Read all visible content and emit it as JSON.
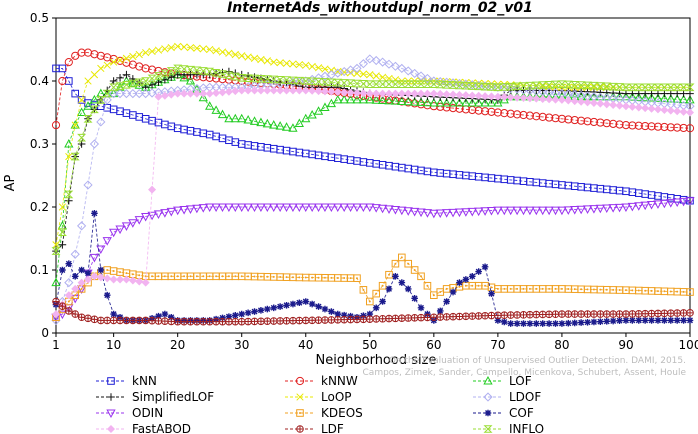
{
  "chart_data": {
    "type": "line",
    "title": "InternetAds_withoutdupl_norm_02_v01",
    "xlabel": "Neighborhood size",
    "ylabel": "AP",
    "xlim": [
      1,
      100
    ],
    "ylim": [
      0,
      0.5
    ],
    "xticks": [
      1,
      10,
      20,
      30,
      40,
      50,
      60,
      70,
      80,
      90,
      100
    ],
    "yticks": [
      0,
      0.1,
      0.2,
      0.3,
      0.4,
      0.5
    ],
    "grid": false,
    "legend_position": "bottom",
    "credit_lines": [
      "Campos, Zimek, Sander, Campello, Micenkova, Schubert, Assent, Houle",
      "On the Evaluation of Unsupervised Outlier Detection. DAMI, 2015."
    ],
    "series": [
      {
        "name": "kNN",
        "color": "#1f1fd6",
        "marker": "square",
        "x": [
          1,
          2,
          3,
          4,
          5,
          6,
          8,
          10,
          15,
          20,
          25,
          30,
          40,
          50,
          60,
          70,
          80,
          90,
          100
        ],
        "y": [
          0.42,
          0.42,
          0.4,
          0.38,
          0.37,
          0.365,
          0.36,
          0.355,
          0.34,
          0.325,
          0.315,
          0.3,
          0.285,
          0.27,
          0.255,
          0.245,
          0.235,
          0.225,
          0.21
        ]
      },
      {
        "name": "kNNW",
        "color": "#e02020",
        "marker": "circle",
        "x": [
          1,
          2,
          3,
          4,
          5,
          6,
          8,
          10,
          15,
          20,
          25,
          30,
          40,
          50,
          60,
          70,
          80,
          90,
          100
        ],
        "y": [
          0.33,
          0.4,
          0.43,
          0.44,
          0.445,
          0.445,
          0.44,
          0.435,
          0.42,
          0.41,
          0.405,
          0.4,
          0.39,
          0.375,
          0.36,
          0.35,
          0.34,
          0.33,
          0.325
        ]
      },
      {
        "name": "LOF",
        "color": "#22cc22",
        "marker": "triangle-up",
        "x": [
          1,
          2,
          3,
          4,
          5,
          6,
          8,
          10,
          12,
          15,
          20,
          22,
          25,
          28,
          30,
          35,
          38,
          40,
          45,
          50,
          60,
          70,
          72,
          80,
          90,
          100
        ],
        "y": [
          0.08,
          0.17,
          0.3,
          0.33,
          0.35,
          0.36,
          0.38,
          0.38,
          0.4,
          0.39,
          0.41,
          0.4,
          0.36,
          0.34,
          0.34,
          0.33,
          0.325,
          0.34,
          0.37,
          0.37,
          0.365,
          0.365,
          0.375,
          0.375,
          0.375,
          0.37
        ]
      },
      {
        "name": "SimplifiedLOF",
        "color": "#111111",
        "marker": "plus",
        "x": [
          1,
          2,
          3,
          4,
          5,
          6,
          8,
          10,
          12,
          15,
          20,
          25,
          28,
          30,
          35,
          40,
          45,
          50,
          60,
          70,
          72,
          80,
          90,
          100
        ],
        "y": [
          0.13,
          0.14,
          0.21,
          0.28,
          0.3,
          0.34,
          0.37,
          0.4,
          0.41,
          0.39,
          0.41,
          0.41,
          0.415,
          0.41,
          0.4,
          0.39,
          0.39,
          0.38,
          0.375,
          0.37,
          0.385,
          0.385,
          0.38,
          0.38
        ]
      },
      {
        "name": "LoOP",
        "color": "#e8e800",
        "marker": "x",
        "x": [
          1,
          2,
          3,
          4,
          5,
          6,
          8,
          10,
          15,
          20,
          25,
          30,
          35,
          40,
          45,
          50,
          55,
          60,
          70,
          80,
          90,
          100
        ],
        "y": [
          0.14,
          0.2,
          0.28,
          0.33,
          0.37,
          0.4,
          0.42,
          0.43,
          0.445,
          0.455,
          0.45,
          0.44,
          0.43,
          0.425,
          0.415,
          0.41,
          0.4,
          0.4,
          0.395,
          0.39,
          0.39,
          0.39
        ]
      },
      {
        "name": "LDOF",
        "color": "#b0b0f0",
        "marker": "diamond",
        "x": [
          1,
          3,
          5,
          7,
          9,
          10,
          15,
          20,
          25,
          30,
          40,
          48,
          50,
          52,
          55,
          60,
          70,
          80,
          90,
          100
        ],
        "y": [
          0.02,
          0.08,
          0.17,
          0.3,
          0.37,
          0.38,
          0.38,
          0.385,
          0.39,
          0.39,
          0.4,
          0.42,
          0.435,
          0.43,
          0.42,
          0.4,
          0.39,
          0.38,
          0.37,
          0.36
        ]
      },
      {
        "name": "ODIN",
        "color": "#9933ee",
        "marker": "triangle-down",
        "x": [
          1,
          2,
          3,
          5,
          7,
          10,
          15,
          20,
          25,
          30,
          40,
          50,
          55,
          60,
          70,
          80,
          90,
          100
        ],
        "y": [
          0.025,
          0.03,
          0.04,
          0.07,
          0.12,
          0.16,
          0.185,
          0.195,
          0.2,
          0.2,
          0.2,
          0.2,
          0.195,
          0.19,
          0.195,
          0.195,
          0.2,
          0.21
        ]
      },
      {
        "name": "KDEOS",
        "color": "#f0a020",
        "marker": "square-dot",
        "x": [
          1,
          3,
          5,
          7,
          9,
          12,
          15,
          20,
          25,
          30,
          40,
          48,
          50,
          52,
          54,
          55,
          56,
          58,
          60,
          62,
          65,
          68,
          70,
          80,
          90,
          100
        ],
        "y": [
          0.025,
          0.05,
          0.07,
          0.09,
          0.1,
          0.095,
          0.09,
          0.09,
          0.09,
          0.09,
          0.088,
          0.087,
          0.05,
          0.075,
          0.11,
          0.12,
          0.11,
          0.09,
          0.06,
          0.07,
          0.075,
          0.075,
          0.07,
          0.07,
          0.068,
          0.065
        ]
      },
      {
        "name": "COF",
        "color": "#1a1a8c",
        "marker": "star",
        "x": [
          1,
          2,
          3,
          4,
          5,
          6,
          7,
          8,
          9,
          10,
          12,
          15,
          18,
          20,
          25,
          30,
          35,
          40,
          45,
          48,
          50,
          52,
          54,
          56,
          58,
          60,
          62,
          64,
          66,
          68,
          70,
          72,
          80,
          90,
          100
        ],
        "y": [
          0.045,
          0.1,
          0.11,
          0.09,
          0.1,
          0.095,
          0.19,
          0.1,
          0.06,
          0.03,
          0.02,
          0.02,
          0.03,
          0.02,
          0.02,
          0.03,
          0.04,
          0.05,
          0.03,
          0.025,
          0.03,
          0.05,
          0.09,
          0.07,
          0.04,
          0.02,
          0.05,
          0.08,
          0.09,
          0.105,
          0.02,
          0.015,
          0.015,
          0.02,
          0.02
        ]
      },
      {
        "name": "FastABOD",
        "color": "#f2b3f0",
        "marker": "diamond-fill",
        "x": [
          1,
          3,
          5,
          7,
          10,
          12,
          15,
          17,
          20,
          25,
          30,
          40,
          50,
          60,
          70,
          80,
          90,
          100
        ],
        "y": [
          0.03,
          0.06,
          0.08,
          0.09,
          0.085,
          0.085,
          0.08,
          0.375,
          0.38,
          0.38,
          0.385,
          0.385,
          0.38,
          0.38,
          0.375,
          0.37,
          0.36,
          0.35
        ]
      },
      {
        "name": "LDF",
        "color": "#a02020",
        "marker": "circle-dot",
        "x": [
          1,
          3,
          5,
          8,
          10,
          15,
          20,
          25,
          30,
          40,
          50,
          60,
          70,
          80,
          90,
          100
        ],
        "y": [
          0.05,
          0.035,
          0.025,
          0.02,
          0.02,
          0.02,
          0.018,
          0.018,
          0.018,
          0.02,
          0.022,
          0.025,
          0.028,
          0.03,
          0.03,
          0.032
        ]
      },
      {
        "name": "INFLO",
        "color": "#99dd33",
        "marker": "hourglass",
        "x": [
          1,
          2,
          3,
          4,
          5,
          6,
          8,
          10,
          15,
          20,
          25,
          30,
          40,
          50,
          60,
          70,
          80,
          90,
          100
        ],
        "y": [
          0.13,
          0.16,
          0.22,
          0.28,
          0.31,
          0.34,
          0.37,
          0.39,
          0.4,
          0.42,
          0.415,
          0.405,
          0.4,
          0.395,
          0.395,
          0.39,
          0.395,
          0.39,
          0.39
        ]
      }
    ]
  }
}
